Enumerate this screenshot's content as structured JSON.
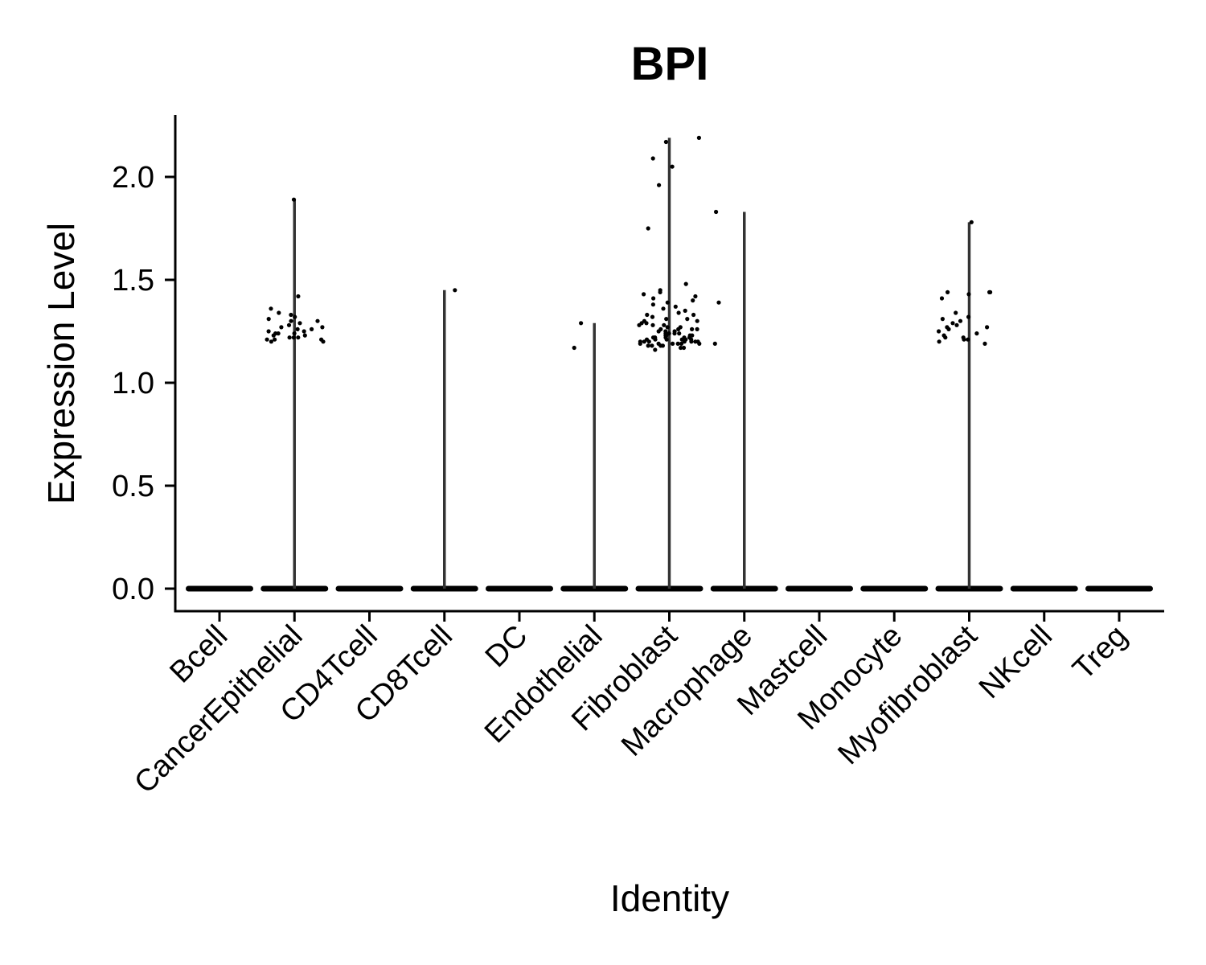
{
  "chart_data": {
    "type": "violin",
    "title": "BPI",
    "xlabel": "Identity",
    "ylabel": "Expression Level",
    "ylim": [
      -0.11,
      2.3
    ],
    "yticks": [
      0.0,
      0.5,
      1.0,
      1.5,
      2.0
    ],
    "ytick_labels": [
      "0.0",
      "0.5",
      "1.0",
      "1.5",
      "2.0"
    ],
    "grid": false,
    "legend": "none",
    "categories": [
      "Bcell",
      "CancerEpithelial",
      "CD4Tcell",
      "CD8Tcell",
      "DC",
      "Endothelial",
      "Fibroblast",
      "Macrophage",
      "Mastcell",
      "Monocyte",
      "Myofibroblast",
      "NKcell",
      "Treg"
    ],
    "violin_max": [
      0,
      1.89,
      0,
      1.45,
      0,
      1.29,
      2.19,
      1.83,
      0,
      0,
      1.78,
      0,
      0
    ],
    "points": [
      {
        "category": "CancerEpithelial",
        "y": [
          1.89,
          1.42,
          1.36,
          1.34,
          1.33,
          1.32,
          1.31,
          1.3,
          1.29,
          1.28,
          1.27,
          1.26,
          1.25,
          1.25,
          1.24,
          1.24,
          1.23,
          1.23,
          1.22,
          1.22,
          1.21,
          1.21,
          1.21,
          1.2,
          1.2,
          1.3,
          1.27,
          1.24,
          1.22,
          1.26
        ]
      },
      {
        "category": "CD8Tcell",
        "y": [
          1.45
        ]
      },
      {
        "category": "Endothelial",
        "y": [
          1.29,
          1.17
        ]
      },
      {
        "category": "Fibroblast",
        "y": [
          2.19,
          2.17,
          2.09,
          2.05,
          1.96,
          1.75,
          1.48,
          1.45,
          1.44,
          1.43,
          1.42,
          1.41,
          1.4,
          1.39,
          1.38,
          1.37,
          1.36,
          1.35,
          1.34,
          1.33,
          1.32,
          1.31,
          1.3,
          1.29,
          1.28,
          1.27,
          1.26,
          1.26,
          1.25,
          1.25,
          1.24,
          1.24,
          1.23,
          1.23,
          1.23,
          1.22,
          1.22,
          1.22,
          1.21,
          1.21,
          1.21,
          1.21,
          1.2,
          1.2,
          1.2,
          1.2,
          1.19,
          1.19,
          1.19,
          1.19,
          1.18,
          1.18,
          1.18,
          1.17,
          1.17,
          1.16,
          1.3,
          1.28,
          1.26,
          1.24,
          1.22,
          1.2,
          1.19,
          1.21,
          1.23,
          1.25,
          1.27,
          1.29,
          1.31,
          1.33,
          1.22,
          1.2,
          1.18,
          1.21,
          1.19,
          1.24,
          1.26,
          1.28,
          1.22,
          1.2
        ]
      },
      {
        "category": "Macrophage",
        "y": [
          1.83,
          1.39,
          1.19
        ]
      },
      {
        "category": "Myofibroblast",
        "y": [
          1.78,
          1.44,
          1.44,
          1.44,
          1.43,
          1.41,
          1.34,
          1.32,
          1.31,
          1.3,
          1.29,
          1.28,
          1.27,
          1.27,
          1.26,
          1.25,
          1.24,
          1.23,
          1.22,
          1.22,
          1.21,
          1.21,
          1.2,
          1.19
        ]
      }
    ]
  }
}
